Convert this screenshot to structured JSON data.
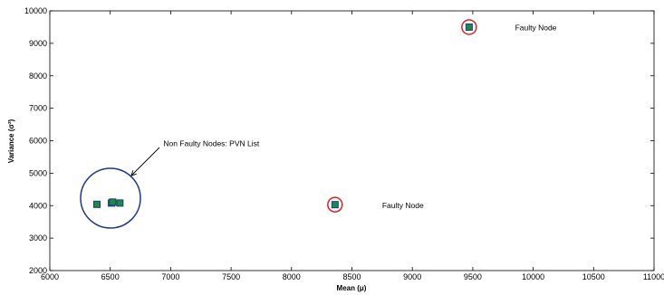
{
  "chart_data": {
    "type": "scatter",
    "xlabel": "Mean (μ)",
    "ylabel": "Variance (σ²)",
    "xlim": [
      6000,
      11000
    ],
    "ylim": [
      2000,
      10000
    ],
    "xticks": [
      6000,
      6500,
      7000,
      7500,
      8000,
      8500,
      9000,
      9500,
      10000,
      10500,
      11000
    ],
    "yticks": [
      2000,
      3000,
      4000,
      5000,
      6000,
      7000,
      8000,
      9000,
      10000
    ],
    "marker_fill": "#1a8c3c",
    "marker_edge": "#1f3a8a",
    "cluster_circle_color": "#1f3a8a",
    "faulty_circle_color": "#e02020",
    "points": [
      {
        "x": 6390,
        "y": 4040
      },
      {
        "x": 6510,
        "y": 4080
      },
      {
        "x": 6520,
        "y": 4110
      },
      {
        "x": 6580,
        "y": 4080
      },
      {
        "x": 8360,
        "y": 4030
      },
      {
        "x": 9470,
        "y": 9500
      }
    ],
    "annotations": [
      {
        "text": "Faulty Node",
        "x": 9850,
        "y": 9480
      },
      {
        "text": "Faulty Node",
        "x": 8750,
        "y": 4010
      },
      {
        "text": "Non Faulty Nodes: PVN List",
        "x": 6940,
        "y": 5920
      }
    ]
  }
}
